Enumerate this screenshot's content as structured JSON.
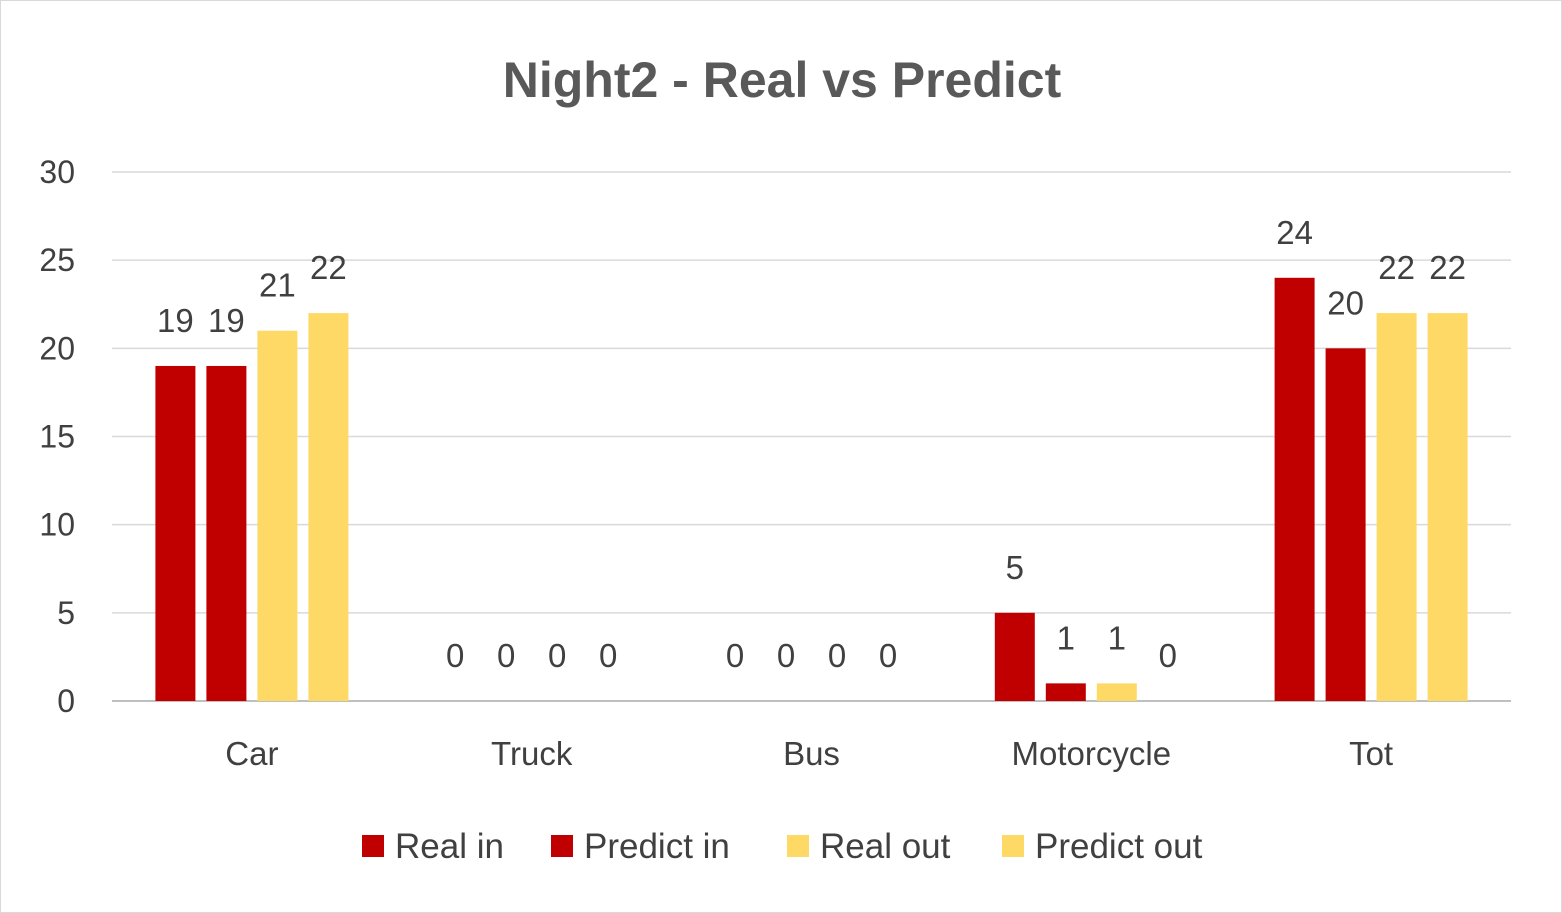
{
  "chart_data": {
    "type": "bar",
    "title": "Night2 - Real vs Predict",
    "xlabel": "",
    "ylabel": "",
    "ylim": [
      0,
      30
    ],
    "yticks": [
      0,
      5,
      10,
      15,
      20,
      25,
      30
    ],
    "grid": true,
    "legend_position": "bottom",
    "categories": [
      "Car",
      "Truck",
      "Bus",
      "Motorcycle",
      "Tot"
    ],
    "series": [
      {
        "name": "Real in",
        "color": "#c00000",
        "values": [
          19,
          0,
          0,
          5,
          24
        ]
      },
      {
        "name": "Predict in",
        "color": "#c00000",
        "values": [
          19,
          0,
          0,
          1,
          20
        ]
      },
      {
        "name": "Real out",
        "color": "#ffd966",
        "values": [
          21,
          0,
          0,
          1,
          22
        ]
      },
      {
        "name": "Predict out",
        "color": "#ffd966",
        "values": [
          22,
          0,
          0,
          0,
          22
        ]
      }
    ]
  }
}
